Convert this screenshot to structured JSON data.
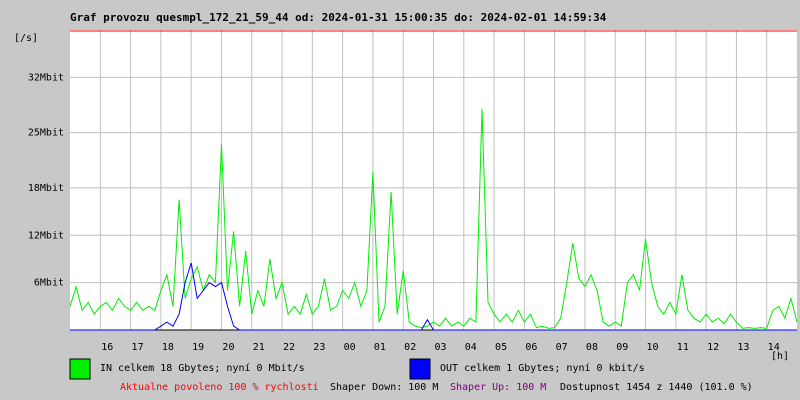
{
  "chart_data": {
    "type": "line",
    "title": "Graf provozu quesmpl_172_21_59_44 od: 2024-01-31 15:00:35 do: 2024-02-01 14:59:34",
    "ylabel": "[/s]",
    "xlabel": "[h]",
    "x": [
      0,
      0.2,
      0.4,
      0.6,
      0.8,
      1,
      1.2,
      1.4,
      1.6,
      1.8,
      2,
      2.2,
      2.4,
      2.6,
      2.8,
      3,
      3.2,
      3.4,
      3.6,
      3.8,
      4,
      4.2,
      4.4,
      4.6,
      4.8,
      5,
      5.2,
      5.4,
      5.6,
      5.8,
      6,
      6.2,
      6.4,
      6.6,
      6.8,
      7,
      7.2,
      7.4,
      7.6,
      7.8,
      8,
      8.2,
      8.4,
      8.6,
      8.8,
      9,
      9.2,
      9.4,
      9.6,
      9.8,
      10,
      10.2,
      10.4,
      10.6,
      10.8,
      11,
      11.2,
      11.4,
      11.6,
      11.8,
      12,
      12.2,
      12.4,
      12.6,
      12.8,
      13,
      13.2,
      13.4,
      13.6,
      13.8,
      14,
      14.2,
      14.4,
      14.6,
      14.8,
      15,
      15.2,
      15.4,
      15.6,
      15.8,
      16,
      16.2,
      16.4,
      16.6,
      16.8,
      17,
      17.2,
      17.4,
      17.6,
      17.8,
      18,
      18.2,
      18.4,
      18.6,
      18.8,
      19,
      19.2,
      19.4,
      19.6,
      19.8,
      20,
      20.2,
      20.4,
      20.6,
      20.8,
      21,
      21.2,
      21.4,
      21.6,
      21.8,
      22,
      22.2,
      22.4,
      22.6,
      22.8,
      23,
      23.2,
      23.4,
      23.6,
      23.8,
      24
    ],
    "series": [
      {
        "name": "IN celkem 18 Gbytes; nyní 0 Mbit/s",
        "color": "#00ee00",
        "values": [
          3,
          5.5,
          2.5,
          3.5,
          2,
          3,
          3.5,
          2.5,
          4,
          3,
          2.5,
          3.5,
          2.5,
          3,
          2.5,
          5,
          7,
          3,
          16.5,
          4,
          6.5,
          8,
          5,
          7,
          6,
          23.5,
          5,
          12.5,
          3,
          10,
          2,
          5,
          3,
          9,
          4,
          6,
          2,
          3,
          2,
          4.5,
          2,
          3,
          6.5,
          2.5,
          3,
          5,
          4,
          6,
          3,
          5,
          20,
          1,
          3,
          17.5,
          2,
          7.5,
          1,
          0.5,
          0.3,
          0.5,
          1,
          0.5,
          1.5,
          0.5,
          1,
          0.5,
          1.5,
          1,
          28,
          3.5,
          2,
          1,
          2,
          1,
          2.5,
          1,
          2,
          0.3,
          0.5,
          0.2,
          0.3,
          1.5,
          6,
          11,
          6.5,
          5.5,
          7,
          5,
          1,
          0.5,
          1,
          0.5,
          6,
          7,
          5,
          11.5,
          6,
          3,
          2,
          3.5,
          2,
          7,
          2.5,
          1.5,
          1,
          2,
          1,
          1.5,
          0.8,
          2,
          1,
          0.2,
          0.3,
          0.2,
          0.3,
          0.2,
          2.5,
          3,
          1.5,
          4,
          1
        ]
      },
      {
        "name": "OUT celkem 1 Gbytes; nyní 0 kbit/s",
        "color": "#0000ff",
        "values": [
          0,
          0,
          0,
          0,
          0,
          0,
          0,
          0,
          0,
          0,
          0,
          0,
          0,
          0,
          0,
          0.5,
          1,
          0.5,
          2,
          6,
          8.5,
          4,
          5,
          6,
          5.5,
          6,
          3,
          0.5,
          0,
          0,
          0,
          0,
          0,
          0,
          0,
          0,
          0,
          0,
          0,
          0,
          0,
          0,
          0,
          0,
          0,
          0,
          0,
          0,
          0,
          0,
          0,
          0,
          0,
          0,
          0,
          0,
          0,
          0,
          0,
          1.3,
          0,
          0,
          0,
          0,
          0,
          0,
          0,
          0,
          0,
          0,
          0,
          0,
          0,
          0,
          0,
          0,
          0,
          0,
          0,
          0,
          0,
          0,
          0,
          0,
          0,
          0,
          0,
          0,
          0,
          0,
          0,
          0,
          0,
          0,
          0,
          0,
          0,
          0,
          0,
          0,
          0,
          0,
          0,
          0,
          0,
          0,
          0,
          0,
          0,
          0,
          0,
          0,
          0,
          0,
          0,
          0,
          0,
          0,
          0,
          0,
          0
        ]
      }
    ],
    "xlim": [
      0,
      24
    ],
    "xticks": [
      {
        "value": 1,
        "label": "16"
      },
      {
        "value": 2,
        "label": "17"
      },
      {
        "value": 3,
        "label": "18"
      },
      {
        "value": 4,
        "label": "19"
      },
      {
        "value": 5,
        "label": "20"
      },
      {
        "value": 6,
        "label": "21"
      },
      {
        "value": 7,
        "label": "22"
      },
      {
        "value": 8,
        "label": "23"
      },
      {
        "value": 9,
        "label": "00"
      },
      {
        "value": 10,
        "label": "01"
      },
      {
        "value": 11,
        "label": "02"
      },
      {
        "value": 12,
        "label": "03"
      },
      {
        "value": 13,
        "label": "04"
      },
      {
        "value": 14,
        "label": "05"
      },
      {
        "value": 15,
        "label": "06"
      },
      {
        "value": 16,
        "label": "07"
      },
      {
        "value": 17,
        "label": "08"
      },
      {
        "value": 18,
        "label": "09"
      },
      {
        "value": 19,
        "label": "10"
      },
      {
        "value": 20,
        "label": "11"
      },
      {
        "value": 21,
        "label": "12"
      },
      {
        "value": 22,
        "label": "13"
      },
      {
        "value": 23,
        "label": "14"
      }
    ],
    "ylim": [
      0,
      38
    ],
    "yticks": [
      {
        "value": 6,
        "label": "6Mbit"
      },
      {
        "value": 12,
        "label": "12Mbit"
      },
      {
        "value": 18,
        "label": "18Mbit"
      },
      {
        "value": 25,
        "label": "25Mbit"
      },
      {
        "value": 32,
        "label": "32Mbit"
      }
    ],
    "grid": true,
    "annotations": [
      {
        "text": "Aktualne povoleno 100 % rychlosti",
        "color": "#ff0000"
      },
      {
        "text": "Shaper Down: 100 M",
        "color": "#000000"
      },
      {
        "text": "Shaper Up: 100 M",
        "color": "#800080"
      },
      {
        "text": "Dostupnost 1454 z 1440 (101.0 %)",
        "color": "#000000"
      }
    ]
  }
}
